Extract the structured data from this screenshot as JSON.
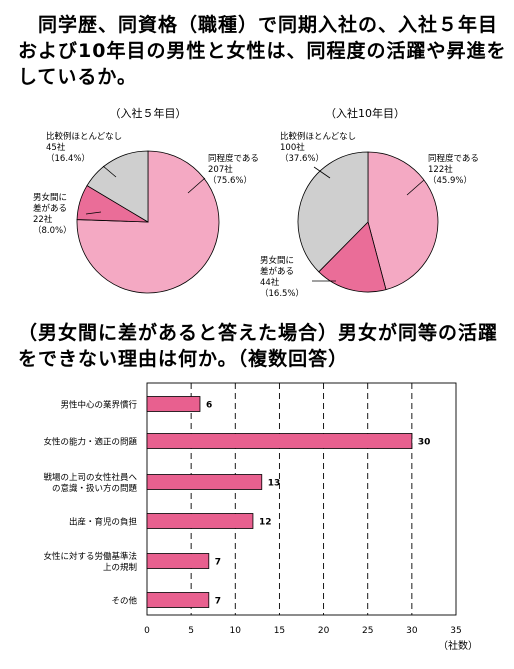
{
  "heading1": {
    "lines": [
      "　同学歴、同資格（職種）で同期入社の、入社５年目",
      "および10年目の男性と女性は、同程度の活躍や昇進を",
      "しているか。"
    ]
  },
  "heading2": {
    "lines": [
      "（男女間に差があると答えた場合）男女が同等の活躍",
      "をできない理由は何か。（複数回答）"
    ]
  },
  "colors": {
    "pink": "#f4a9c3",
    "deep_pink": "#ea6d98",
    "gray": "#cfcfcf",
    "bar": "#e8608f"
  },
  "chart_data": [
    {
      "type": "pie",
      "title": "（入社５年目）",
      "slices": [
        {
          "label_lines": [
            "同程度である",
            "207社",
            "（75.6%）"
          ],
          "value": 207,
          "percent": 75.6,
          "color": "#f4a9c3"
        },
        {
          "label_lines": [
            "男女間に",
            "差がある",
            "22社",
            "（8.0%）"
          ],
          "value": 22,
          "percent": 8.0,
          "color": "#ea6d98"
        },
        {
          "label_lines": [
            "比較例ほとんどなし",
            "45社",
            "（16.4%）"
          ],
          "value": 45,
          "percent": 16.4,
          "color": "#cfcfcf"
        }
      ]
    },
    {
      "type": "pie",
      "title": "（入社10年目）",
      "slices": [
        {
          "label_lines": [
            "同程度である",
            "122社",
            "（45.9%）"
          ],
          "value": 122,
          "percent": 45.9,
          "color": "#f4a9c3"
        },
        {
          "label_lines": [
            "男女間に",
            "差がある",
            "44社",
            "（16.5%）"
          ],
          "value": 44,
          "percent": 16.5,
          "color": "#ea6d98"
        },
        {
          "label_lines": [
            "比較例ほとんどなし",
            "100社",
            "（37.6%）"
          ],
          "value": 100,
          "percent": 37.6,
          "color": "#cfcfcf"
        }
      ]
    },
    {
      "type": "bar",
      "orientation": "horizontal",
      "categories": [
        [
          "男性中心の業界慣行"
        ],
        [
          "女性の能力・適正の問題"
        ],
        [
          "戦場の上司の女性社員へ",
          "の意識・扱い方の問題"
        ],
        [
          "出産・育児の負担"
        ],
        [
          "女性に対する労働基準法",
          "上の規制"
        ],
        [
          "その他"
        ]
      ],
      "values": [
        6,
        30,
        13,
        12,
        7,
        7
      ],
      "xlim": [
        0,
        35
      ],
      "xticks": [
        "0",
        "5",
        "10",
        "15",
        "20",
        "25",
        "30",
        "35"
      ],
      "xlabel": "（社数）",
      "grid": "vertical dashed"
    }
  ]
}
